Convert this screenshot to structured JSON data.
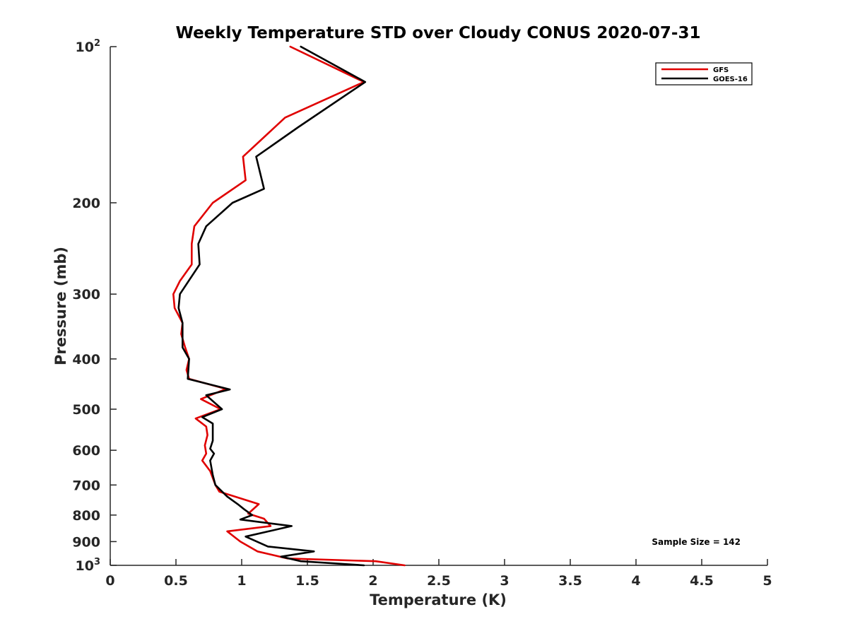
{
  "chart_data": {
    "type": "line",
    "title": "Weekly Temperature STD over Cloudy CONUS 2020-07-31",
    "xlabel": "Temperature (K)",
    "ylabel": "Pressure (mb)",
    "xlim": [
      0,
      5
    ],
    "ylim": [
      100,
      1000
    ],
    "y_scale": "log",
    "y_reversed": true,
    "grid": false,
    "legend_position": "top-right",
    "x_ticks": [
      "0",
      "0.5",
      "1",
      "1.5",
      "2",
      "2.5",
      "3",
      "3.5",
      "4",
      "4.5",
      "5"
    ],
    "y_ticks": [
      {
        "value": 100,
        "label": "10",
        "exp": "2"
      },
      {
        "value": 200,
        "label": "200",
        "exp": ""
      },
      {
        "value": 300,
        "label": "300",
        "exp": ""
      },
      {
        "value": 400,
        "label": "400",
        "exp": ""
      },
      {
        "value": 500,
        "label": "500",
        "exp": ""
      },
      {
        "value": 600,
        "label": "600",
        "exp": ""
      },
      {
        "value": 700,
        "label": "700",
        "exp": ""
      },
      {
        "value": 800,
        "label": "800",
        "exp": ""
      },
      {
        "value": 900,
        "label": "900",
        "exp": ""
      },
      {
        "value": 1000,
        "label": "10",
        "exp": "3"
      }
    ],
    "annotation": "Sample Size = 142",
    "series": [
      {
        "name": "GFS",
        "color": "#e00000",
        "points": [
          [
            1.37,
            100
          ],
          [
            1.93,
            117
          ],
          [
            1.33,
            137
          ],
          [
            1.01,
            163
          ],
          [
            1.03,
            181
          ],
          [
            0.78,
            200
          ],
          [
            0.64,
            222
          ],
          [
            0.62,
            240
          ],
          [
            0.62,
            263
          ],
          [
            0.53,
            283
          ],
          [
            0.48,
            300
          ],
          [
            0.49,
            319
          ],
          [
            0.55,
            341
          ],
          [
            0.54,
            358
          ],
          [
            0.57,
            380
          ],
          [
            0.6,
            400
          ],
          [
            0.58,
            420
          ],
          [
            0.6,
            437
          ],
          [
            0.88,
            457
          ],
          [
            0.69,
            478
          ],
          [
            0.84,
            500
          ],
          [
            0.65,
            521
          ],
          [
            0.73,
            540
          ],
          [
            0.74,
            561
          ],
          [
            0.72,
            587
          ],
          [
            0.73,
            609
          ],
          [
            0.7,
            628
          ],
          [
            0.76,
            658
          ],
          [
            0.8,
            700
          ],
          [
            0.83,
            721
          ],
          [
            1.13,
            762
          ],
          [
            1.05,
            795
          ],
          [
            1.17,
            813
          ],
          [
            1.22,
            840
          ],
          [
            0.89,
            860
          ],
          [
            0.99,
            900
          ],
          [
            1.12,
            940
          ],
          [
            1.35,
            970
          ],
          [
            2.02,
            982
          ],
          [
            2.24,
            1000
          ]
        ]
      },
      {
        "name": "GOES-16",
        "color": "#000000",
        "points": [
          [
            1.45,
            100
          ],
          [
            1.94,
            117
          ],
          [
            1.43,
            143
          ],
          [
            1.11,
            163
          ],
          [
            1.17,
            188
          ],
          [
            0.93,
            200
          ],
          [
            0.73,
            222
          ],
          [
            0.67,
            240
          ],
          [
            0.68,
            263
          ],
          [
            0.53,
            300
          ],
          [
            0.52,
            319
          ],
          [
            0.55,
            341
          ],
          [
            0.55,
            380
          ],
          [
            0.6,
            400
          ],
          [
            0.59,
            437
          ],
          [
            0.91,
            458
          ],
          [
            0.73,
            470
          ],
          [
            0.85,
            500
          ],
          [
            0.7,
            518
          ],
          [
            0.78,
            533
          ],
          [
            0.78,
            575
          ],
          [
            0.76,
            596
          ],
          [
            0.79,
            609
          ],
          [
            0.76,
            628
          ],
          [
            0.78,
            670
          ],
          [
            0.8,
            700
          ],
          [
            0.89,
            737
          ],
          [
            0.97,
            762
          ],
          [
            1.02,
            780
          ],
          [
            1.08,
            800
          ],
          [
            0.99,
            816
          ],
          [
            1.38,
            840
          ],
          [
            1.03,
            880
          ],
          [
            1.2,
            920
          ],
          [
            1.55,
            940
          ],
          [
            1.3,
            962
          ],
          [
            1.45,
            982
          ],
          [
            1.93,
            1000
          ]
        ]
      }
    ]
  }
}
